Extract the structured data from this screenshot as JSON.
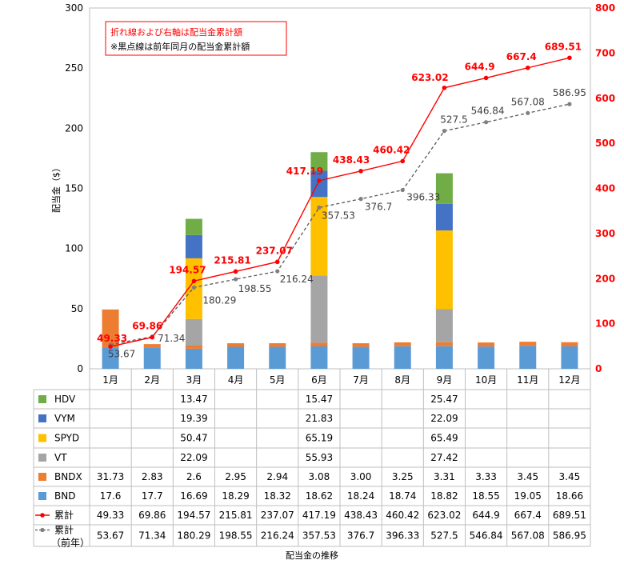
{
  "chart_data": {
    "type": "bar",
    "categories": [
      "1月",
      "2月",
      "3月",
      "4月",
      "5月",
      "6月",
      "7月",
      "8月",
      "9月",
      "10月",
      "11月",
      "12月"
    ],
    "ylabel": "配当金（$）",
    "xlabel": "配当金の推移",
    "left_axis": {
      "range": [
        0,
        300
      ],
      "ticks": [
        0,
        50,
        100,
        150,
        200,
        250,
        300
      ]
    },
    "right_axis": {
      "range": [
        0,
        800
      ],
      "ticks": [
        0,
        100,
        200,
        300,
        400,
        500,
        600,
        700,
        800
      ]
    },
    "annotation_lines": [
      "折れ線および右軸は配当金累計額",
      "※黒点線は前年同月の配当金累計額"
    ],
    "series": [
      {
        "name": "BND",
        "kind": "bar",
        "color": "#5B9BD5",
        "values": [
          17.6,
          17.7,
          16.69,
          18.29,
          18.32,
          18.62,
          18.24,
          18.74,
          18.82,
          18.55,
          19.05,
          18.66
        ]
      },
      {
        "name": "BNDX",
        "kind": "bar",
        "color": "#ED7D31",
        "values": [
          31.73,
          2.83,
          2.6,
          2.95,
          2.94,
          3.08,
          3.0,
          3.25,
          3.31,
          3.33,
          3.45,
          3.45
        ]
      },
      {
        "name": "VT",
        "kind": "bar",
        "color": "#A5A5A5",
        "values": [
          null,
          null,
          22.09,
          null,
          null,
          55.93,
          null,
          null,
          27.42,
          null,
          null,
          null
        ]
      },
      {
        "name": "SPYD",
        "kind": "bar",
        "color": "#FFC000",
        "values": [
          null,
          null,
          50.47,
          null,
          null,
          65.19,
          null,
          null,
          65.49,
          null,
          null,
          null
        ]
      },
      {
        "name": "VYM",
        "kind": "bar",
        "color": "#4472C4",
        "values": [
          null,
          null,
          19.39,
          null,
          null,
          21.83,
          null,
          null,
          22.09,
          null,
          null,
          null
        ]
      },
      {
        "name": "HDV",
        "kind": "bar",
        "color": "#70AD47",
        "values": [
          null,
          null,
          13.47,
          null,
          null,
          15.47,
          null,
          null,
          25.47,
          null,
          null,
          null
        ]
      },
      {
        "name": "累計",
        "kind": "line",
        "axis": "right",
        "color": "#FF0000",
        "values": [
          49.33,
          69.86,
          194.57,
          215.81,
          237.07,
          417.19,
          438.43,
          460.42,
          623.02,
          644.9,
          667.4,
          689.51
        ]
      },
      {
        "name": "累計（前年）",
        "kind": "dashed-line",
        "axis": "right",
        "color": "#595959",
        "values": [
          53.67,
          71.34,
          180.29,
          198.55,
          216.24,
          357.53,
          376.7,
          396.33,
          527.5,
          546.84,
          567.08,
          586.95
        ]
      }
    ],
    "table": {
      "row_order": [
        "HDV",
        "VYM",
        "SPYD",
        "VT",
        "BNDX",
        "BND",
        "累計",
        "累計（前年）"
      ],
      "row_labels": [
        "HDV",
        "VYM",
        "SPYD",
        "VT",
        "BNDX",
        "BND",
        "累計",
        "累計\n（前年）"
      ],
      "cells": [
        [
          "",
          "",
          "13.47",
          "",
          "",
          "15.47",
          "",
          "",
          "25.47",
          "",
          "",
          ""
        ],
        [
          "",
          "",
          "19.39",
          "",
          "",
          "21.83",
          "",
          "",
          "22.09",
          "",
          "",
          ""
        ],
        [
          "",
          "",
          "50.47",
          "",
          "",
          "65.19",
          "",
          "",
          "65.49",
          "",
          "",
          ""
        ],
        [
          "",
          "",
          "22.09",
          "",
          "",
          "55.93",
          "",
          "",
          "27.42",
          "",
          "",
          ""
        ],
        [
          "31.73",
          "2.83",
          "2.6",
          "2.95",
          "2.94",
          "3.08",
          "3.00",
          "3.25",
          "3.31",
          "3.33",
          "3.45",
          "3.45"
        ],
        [
          "17.6",
          "17.7",
          "16.69",
          "18.29",
          "18.32",
          "18.62",
          "18.24",
          "18.74",
          "18.82",
          "18.55",
          "19.05",
          "18.66"
        ],
        [
          "49.33",
          "69.86",
          "194.57",
          "215.81",
          "237.07",
          "417.19",
          "438.43",
          "460.42",
          "623.02",
          "644.9",
          "667.4",
          "689.51"
        ],
        [
          "53.67",
          "71.34",
          "180.29",
          "198.55",
          "216.24",
          "357.53",
          "376.7",
          "396.33",
          "527.5",
          "546.84",
          "567.08",
          "586.95"
        ]
      ]
    }
  }
}
